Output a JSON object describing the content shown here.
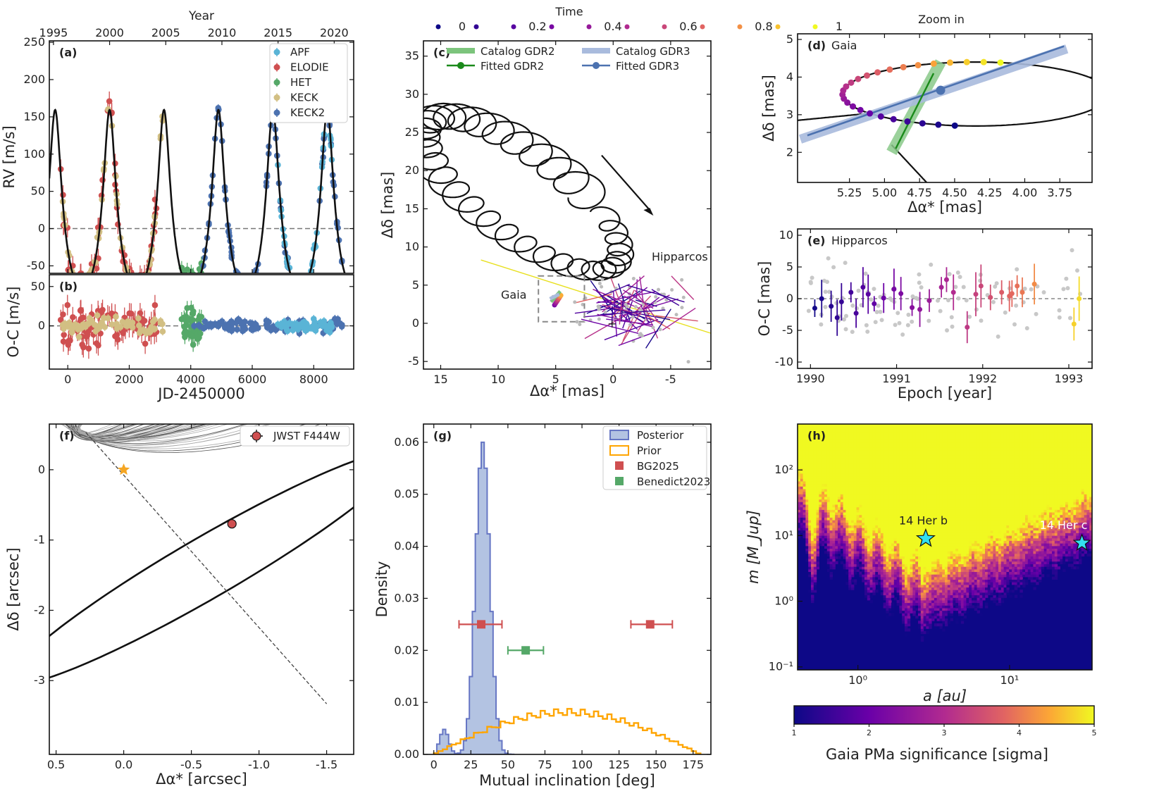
{
  "panel_a": {
    "label": "(a)",
    "top_axis_title": "Year",
    "top_ticks": [
      "1995",
      "2000",
      "2005",
      "2010",
      "2015",
      "2020"
    ],
    "legend": [
      {
        "name": "APF",
        "color": "#5ab4d6"
      },
      {
        "name": "ELODIE",
        "color": "#cf4f50"
      },
      {
        "name": "HET",
        "color": "#55a868"
      },
      {
        "name": "KECK",
        "color": "#d2bf83"
      },
      {
        "name": "KECK2",
        "color": "#4c72b0"
      }
    ]
  },
  "panel_b": {
    "label": "(b)"
  },
  "panel_c": {
    "label": "(c)",
    "colorbar_title": "Time",
    "time_ticks": [
      "0",
      "0.2",
      "0.4",
      "0.6",
      "0.8",
      "1"
    ],
    "legend": {
      "catalog_gdr2": "Catalog GDR2",
      "fitted_gdr2": "Fitted     GDR2",
      "catalog_gdr3": "Catalog GDR3",
      "fitted_gdr3": "Fitted     GDR3"
    },
    "annotations": {
      "gaia": "Gaia",
      "hipparcos": "Hipparcos"
    }
  },
  "panel_d": {
    "label": "(d)",
    "subtitle": "Gaia",
    "title": "Zoom in"
  },
  "panel_e": {
    "label": "(e)",
    "subtitle": "Hipparcos"
  },
  "panel_f": {
    "label": "(f)",
    "legend": "JWST F444W"
  },
  "panel_g": {
    "label": "(g)",
    "legend": {
      "posterior": "Posterior",
      "prior": "Prior",
      "bg2025": "BG2025",
      "benedict": "Benedict2023"
    }
  },
  "panel_h": {
    "label": "(h)",
    "planet_b": "14 Her b",
    "planet_c": "14 Her c",
    "colorbar_label": "Gaia PMa significance [sigma]",
    "colorbar_ticks": [
      "1",
      "2",
      "3",
      "4",
      "5"
    ]
  },
  "chart_data": [
    {
      "id": "a",
      "type": "scatter",
      "title": "",
      "xlabel": "JD-2450000",
      "ylabel": "RV [m/s]",
      "xlim": [
        -600,
        9300
      ],
      "ylim": [
        -60,
        252
      ],
      "x_ticks": [
        0,
        2000,
        4000,
        6000,
        8000
      ],
      "y_ticks": [
        -50,
        0,
        50,
        100,
        150,
        200,
        250
      ],
      "x_tick_labels": [
        "0",
        "2000",
        "4000",
        "6000",
        "8000"
      ],
      "y_tick_labels": [
        "-50",
        "0",
        "50",
        "100",
        "150",
        "200",
        "250"
      ],
      "top_axis": {
        "label": "Year",
        "years": [
          1995,
          2000,
          2005,
          2010,
          2015,
          2020
        ]
      },
      "model": {
        "period_days": 1770,
        "semi_amplitude": 120,
        "eccentricity": 0.37,
        "periastron_jd": 1360
      },
      "series": [
        {
          "name": "ELODIE",
          "jd_range": [
            -300,
            2900
          ]
        },
        {
          "name": "KECK",
          "jd_range": [
            -300,
            3100
          ]
        },
        {
          "name": "HET",
          "jd_range": [
            3700,
            4400
          ]
        },
        {
          "name": "KECK2",
          "jd_range": [
            4100,
            8950
          ]
        },
        {
          "name": "APF",
          "jd_range": [
            6800,
            8600
          ]
        }
      ]
    },
    {
      "id": "b",
      "type": "scatter",
      "xlabel": "",
      "ylabel": "O-C [m/s]",
      "xlim": [
        -600,
        9300
      ],
      "ylim": [
        -55,
        65
      ],
      "y_ticks": [
        0,
        50
      ],
      "y_tick_labels": [
        "0",
        "50"
      ],
      "residual_scatter": {
        "ELODIE": 14,
        "KECK": 6,
        "HET": 12,
        "KECK2": 4,
        "APF": 4
      }
    },
    {
      "id": "c",
      "type": "line",
      "xlabel": "Δα* [mas]",
      "ylabel": "Δδ [mas]",
      "xlim": [
        16.5,
        -8.5
      ],
      "ylim": [
        -6,
        37
      ],
      "x_ticks": [
        15,
        10,
        5,
        0,
        -5
      ],
      "x_tick_labels": [
        "15",
        "10",
        "5",
        "0",
        "-5"
      ],
      "y_ticks": [
        -5,
        0,
        5,
        10,
        15,
        20,
        25,
        30,
        35
      ],
      "y_tick_labels": [
        "-5",
        "0",
        "5",
        "10",
        "15",
        "20",
        "25",
        "30",
        "35"
      ],
      "time_colorbar": {
        "min": 0,
        "max": 1,
        "ticks": [
          0,
          0.2,
          0.4,
          0.6,
          0.8,
          1
        ]
      },
      "orbit_model": {
        "center": [
          8,
          17
        ],
        "semi_major": 12.5,
        "semi_minor": 4.6,
        "tilt_deg": 51,
        "loop_radius": 1.9
      },
      "gaia_box": {
        "x": [
          2.5,
          6.5
        ],
        "y": [
          0.2,
          6.2
        ]
      },
      "catalog_gdr2": {
        "at": [
          5,
          3.3
        ],
        "pm_slope": 1.8
      },
      "catalog_gdr3": {
        "at": [
          5.2,
          3.4
        ],
        "pm_slope": 0.4
      }
    },
    {
      "id": "d",
      "type": "scatter",
      "xlabel": "Δα* [mas]",
      "ylabel": "Δδ [mas]",
      "xlim": [
        5.62,
        3.52
      ],
      "ylim": [
        1.2,
        5.15
      ],
      "x_ticks": [
        5.25,
        5.0,
        4.75,
        4.5,
        4.25,
        4.0,
        3.75
      ],
      "x_tick_labels": [
        "5.25",
        "5.00",
        "4.75",
        "4.50",
        "4.25",
        "4.00",
        "3.75"
      ],
      "y_ticks": [
        2,
        3,
        4,
        5
      ],
      "y_tick_labels": [
        "2",
        "3",
        "4",
        "5"
      ],
      "gdr2": {
        "catalog_from": [
          4.95,
          2.0
        ],
        "catalog_to": [
          4.6,
          4.4
        ],
        "fitted_from": [
          4.92,
          2.1
        ],
        "fitted_to": [
          4.65,
          4.1
        ]
      },
      "gdr3": {
        "catalog_from": [
          5.6,
          2.35
        ],
        "catalog_to": [
          3.7,
          4.75
        ],
        "fitted_from": [
          5.55,
          2.45
        ],
        "fitted_to": [
          3.72,
          4.82
        ],
        "fitted_point": [
          4.6,
          3.65
        ]
      }
    },
    {
      "id": "e",
      "type": "scatter",
      "xlabel": "Epoch [year]",
      "ylabel": "O-C [mas]",
      "xlim": [
        1989.85,
        1993.27
      ],
      "ylim": [
        -11,
        11
      ],
      "x_ticks": [
        1990,
        1991,
        1992,
        1993
      ],
      "x_tick_labels": [
        "1990",
        "1991",
        "1992",
        "1993"
      ],
      "y_ticks": [
        -10,
        -5,
        0,
        5,
        10
      ],
      "y_tick_labels": [
        "-10",
        "-5",
        "0",
        "5",
        "10"
      ],
      "epochs": [
        1990.05,
        1990.13,
        1990.24,
        1990.31,
        1990.36,
        1990.47,
        1990.53,
        1990.61,
        1990.67,
        1990.74,
        1990.85,
        1990.97,
        1991.05,
        1991.18,
        1991.27,
        1991.38,
        1991.52,
        1991.58,
        1991.66,
        1991.82,
        1991.92,
        1991.98,
        1992.09,
        1992.22,
        1992.31,
        1992.34,
        1992.4,
        1992.46,
        1992.6,
        1993.06,
        1993.12
      ],
      "residuals": [
        -1.5,
        0.0,
        -1.2,
        -3.0,
        -0.5,
        1.0,
        -2.3,
        1.8,
        0.7,
        -0.8,
        0.1,
        1.5,
        0.8,
        -1.4,
        -1.7,
        -0.3,
        1.8,
        3.0,
        1.0,
        -4.5,
        0.7,
        2.0,
        0.2,
        1.0,
        0.4,
        0.8,
        2.0,
        1.0,
        2.3,
        -4.0,
        0.0
      ]
    },
    {
      "id": "f",
      "type": "line",
      "xlabel": "Δα* [arcsec]",
      "ylabel": "Δδ [arcsec]",
      "xlim": [
        0.55,
        -1.7
      ],
      "ylim": [
        -4.05,
        0.65
      ],
      "x_ticks": [
        0.5,
        0.0,
        -0.5,
        -1.0,
        -1.5
      ],
      "x_tick_labels": [
        "0.5",
        "0.0",
        "-0.5",
        "-1.0",
        "-1.5"
      ],
      "y_ticks": [
        0,
        -1,
        -2,
        -3
      ],
      "y_tick_labels": [
        "0",
        "-1",
        "-2",
        "-3"
      ],
      "star": [
        0.0,
        0.0
      ],
      "jwst_point": [
        -0.8,
        -0.77
      ],
      "best_orbit": {
        "center": [
          -0.615,
          -1.39
        ],
        "semi_major": 2.18,
        "semi_minor": 0.33,
        "pa_deg": -49,
        "line_of_nodes": [
          [
            0.28,
            0.53
          ],
          [
            -1.5,
            -3.33
          ]
        ]
      },
      "n_samples": 55
    },
    {
      "id": "g",
      "type": "bar",
      "xlabel": "Mutual inclination [deg]",
      "ylabel": "Density",
      "xlim": [
        -7,
        187
      ],
      "ylim": [
        0,
        0.0635
      ],
      "x_ticks": [
        0,
        25,
        50,
        75,
        100,
        125,
        150,
        175
      ],
      "x_tick_labels": [
        "0",
        "25",
        "50",
        "75",
        "100",
        "125",
        "150",
        "175"
      ],
      "y_ticks": [
        0,
        0.01,
        0.02,
        0.03,
        0.04,
        0.05,
        0.06
      ],
      "y_tick_labels": [
        "0.00",
        "0.01",
        "0.02",
        "0.03",
        "0.04",
        "0.05",
        "0.06"
      ],
      "posterior": {
        "bin_width": 2,
        "main_mean": 33,
        "main_sigma": 4.8,
        "main_peak": 0.06,
        "secondary_mean": 7,
        "secondary_sigma": 3,
        "secondary_peak": 0.0048,
        "range": [
          2,
          54
        ]
      },
      "prior": {
        "bin_width": 3,
        "shape": "sin",
        "peak": 0.0088,
        "range": [
          0,
          180
        ]
      },
      "bg2025": [
        {
          "value": 32,
          "lo": 17,
          "hi": 46,
          "y": 0.025
        },
        {
          "value": 146,
          "lo": 133,
          "hi": 161,
          "y": 0.025
        }
      ],
      "benedict2023": [
        {
          "value": 62,
          "lo": 50,
          "hi": 74,
          "y": 0.02
        }
      ]
    },
    {
      "id": "h",
      "type": "heatmap",
      "xlabel": "a [au]",
      "ylabel": "m [M_Jup]",
      "xscale": "log",
      "yscale": "log",
      "xlim": [
        0.4,
        35
      ],
      "ylim": [
        0.09,
        500
      ],
      "x_ticks": [
        1,
        10
      ],
      "x_tick_labels": [
        "10⁰",
        "10¹"
      ],
      "y_ticks": [
        0.1,
        1,
        10,
        100
      ],
      "y_tick_labels": [
        "10⁻¹",
        "10⁰",
        "10¹",
        "10²"
      ],
      "colorbar": {
        "min": 1,
        "max": 5,
        "ticks": [
          1,
          2,
          3,
          4,
          5
        ]
      },
      "detection_boundary": {
        "optimum_a": 2.7,
        "min_mass": 1.0,
        "slope_outer": 1.05,
        "slope_inner": 3.2
      },
      "planets": [
        {
          "name": "14 Her b",
          "a": 2.8,
          "m": 9.0
        },
        {
          "name": "14 Her c",
          "a": 30,
          "m": 7.7
        }
      ]
    }
  ]
}
